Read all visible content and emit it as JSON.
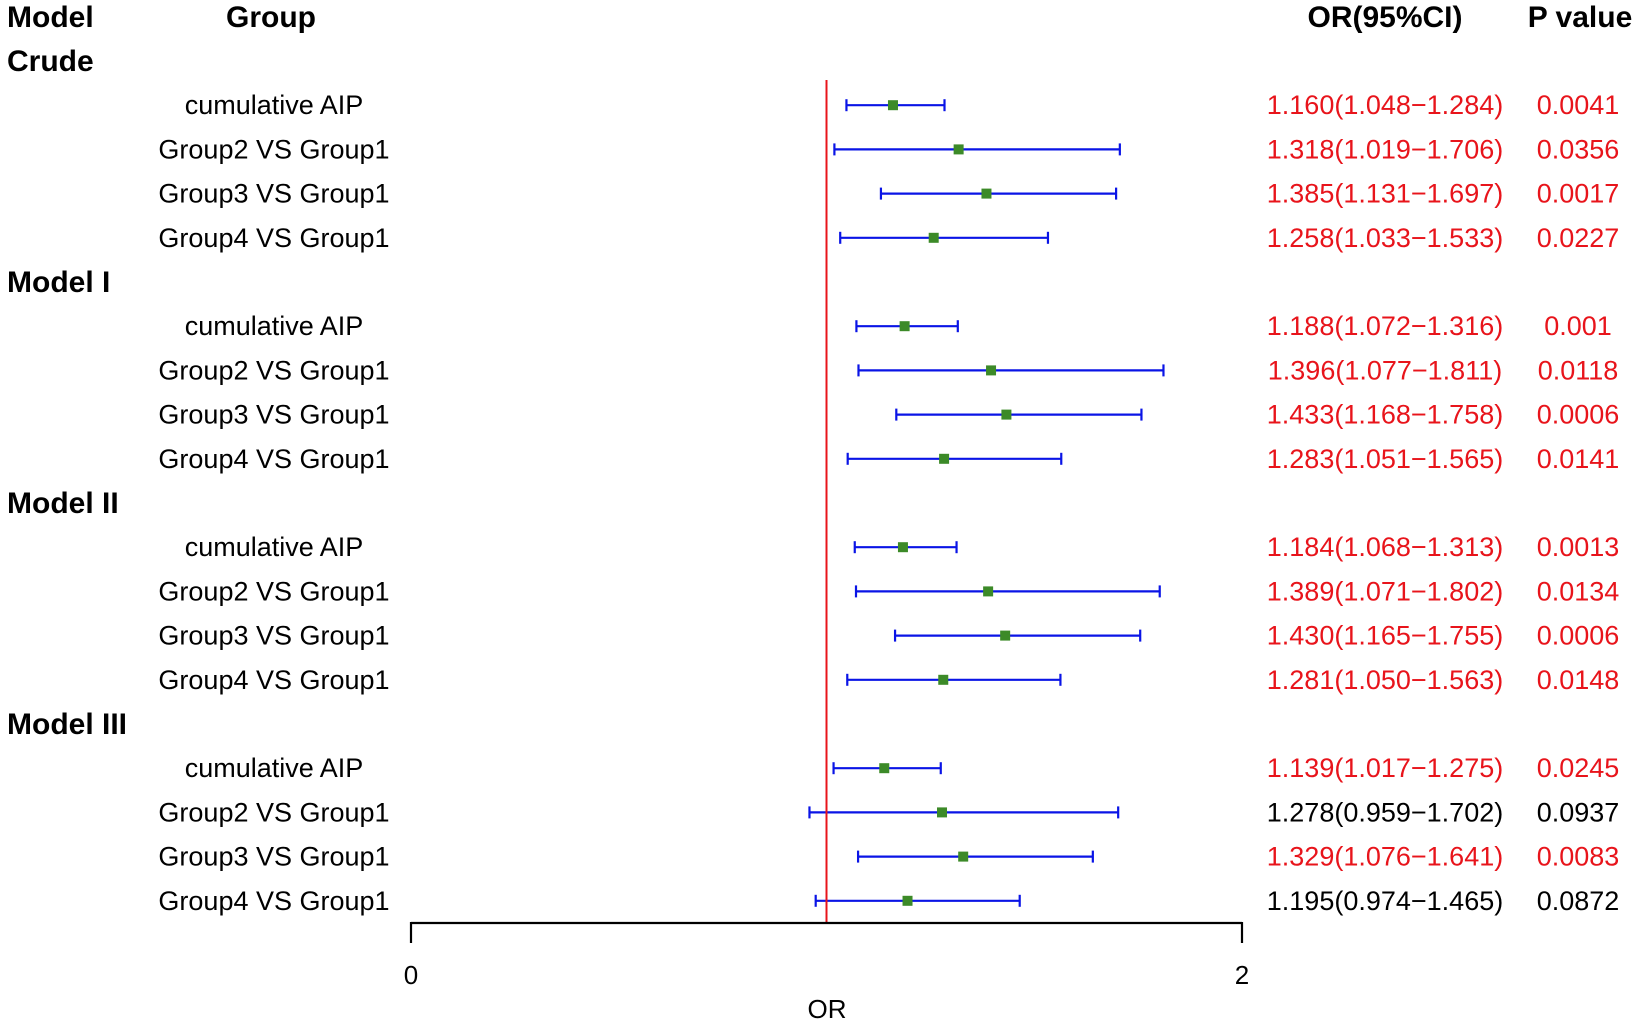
{
  "chart_data": {
    "type": "forest",
    "headers": {
      "model": "Model",
      "group": "Group",
      "or_ci": "OR(95%CI)",
      "p_value": "P value"
    },
    "xlabel": "OR",
    "xlim": [
      0,
      2
    ],
    "xticks": [
      {
        "value": 0,
        "label": "0"
      },
      {
        "value": 2,
        "label": "2"
      }
    ],
    "reference_value": 1,
    "colors": {
      "significant": "#e8141b",
      "nonsignificant": "#000000",
      "ci_line": "#0a14e6",
      "point": "#3c8a28",
      "reference_line": "#e8141b",
      "axis": "#000000"
    },
    "models": [
      {
        "name": "Crude",
        "rows": [
          {
            "group": "cumulative AIP",
            "or": 1.16,
            "lower": 1.048,
            "upper": 1.284,
            "or_ci": "1.160(1.048−1.284)",
            "p": "0.0041",
            "significant": true
          },
          {
            "group": "Group2 VS Group1",
            "or": 1.318,
            "lower": 1.019,
            "upper": 1.706,
            "or_ci": "1.318(1.019−1.706)",
            "p": "0.0356",
            "significant": true
          },
          {
            "group": "Group3 VS Group1",
            "or": 1.385,
            "lower": 1.131,
            "upper": 1.697,
            "or_ci": "1.385(1.131−1.697)",
            "p": "0.0017",
            "significant": true
          },
          {
            "group": "Group4 VS Group1",
            "or": 1.258,
            "lower": 1.033,
            "upper": 1.533,
            "or_ci": "1.258(1.033−1.533)",
            "p": "0.0227",
            "significant": true
          }
        ]
      },
      {
        "name": "Model I",
        "rows": [
          {
            "group": "cumulative AIP",
            "or": 1.188,
            "lower": 1.072,
            "upper": 1.316,
            "or_ci": "1.188(1.072−1.316)",
            "p": "0.001",
            "significant": true
          },
          {
            "group": "Group2 VS Group1",
            "or": 1.396,
            "lower": 1.077,
            "upper": 1.811,
            "or_ci": "1.396(1.077−1.811)",
            "p": "0.0118",
            "significant": true
          },
          {
            "group": "Group3 VS Group1",
            "or": 1.433,
            "lower": 1.168,
            "upper": 1.758,
            "or_ci": "1.433(1.168−1.758)",
            "p": "0.0006",
            "significant": true
          },
          {
            "group": "Group4 VS Group1",
            "or": 1.283,
            "lower": 1.051,
            "upper": 1.565,
            "or_ci": "1.283(1.051−1.565)",
            "p": "0.0141",
            "significant": true
          }
        ]
      },
      {
        "name": "Model II",
        "rows": [
          {
            "group": "cumulative AIP",
            "or": 1.184,
            "lower": 1.068,
            "upper": 1.313,
            "or_ci": "1.184(1.068−1.313)",
            "p": "0.0013",
            "significant": true
          },
          {
            "group": "Group2 VS Group1",
            "or": 1.389,
            "lower": 1.071,
            "upper": 1.802,
            "or_ci": "1.389(1.071−1.802)",
            "p": "0.0134",
            "significant": true
          },
          {
            "group": "Group3 VS Group1",
            "or": 1.43,
            "lower": 1.165,
            "upper": 1.755,
            "or_ci": "1.430(1.165−1.755)",
            "p": "0.0006",
            "significant": true
          },
          {
            "group": "Group4 VS Group1",
            "or": 1.281,
            "lower": 1.05,
            "upper": 1.563,
            "or_ci": "1.281(1.050−1.563)",
            "p": "0.0148",
            "significant": true
          }
        ]
      },
      {
        "name": "Model III",
        "rows": [
          {
            "group": "cumulative AIP",
            "or": 1.139,
            "lower": 1.017,
            "upper": 1.275,
            "or_ci": "1.139(1.017−1.275)",
            "p": "0.0245",
            "significant": true
          },
          {
            "group": "Group2 VS Group1",
            "or": 1.278,
            "lower": 0.959,
            "upper": 1.702,
            "or_ci": "1.278(0.959−1.702)",
            "p": "0.0937",
            "significant": false
          },
          {
            "group": "Group3 VS Group1",
            "or": 1.329,
            "lower": 1.076,
            "upper": 1.641,
            "or_ci": "1.329(1.076−1.641)",
            "p": "0.0083",
            "significant": true
          },
          {
            "group": "Group4 VS Group1",
            "or": 1.195,
            "lower": 0.974,
            "upper": 1.465,
            "or_ci": "1.195(0.974−1.465)",
            "p": "0.0872",
            "significant": false
          }
        ]
      }
    ]
  }
}
